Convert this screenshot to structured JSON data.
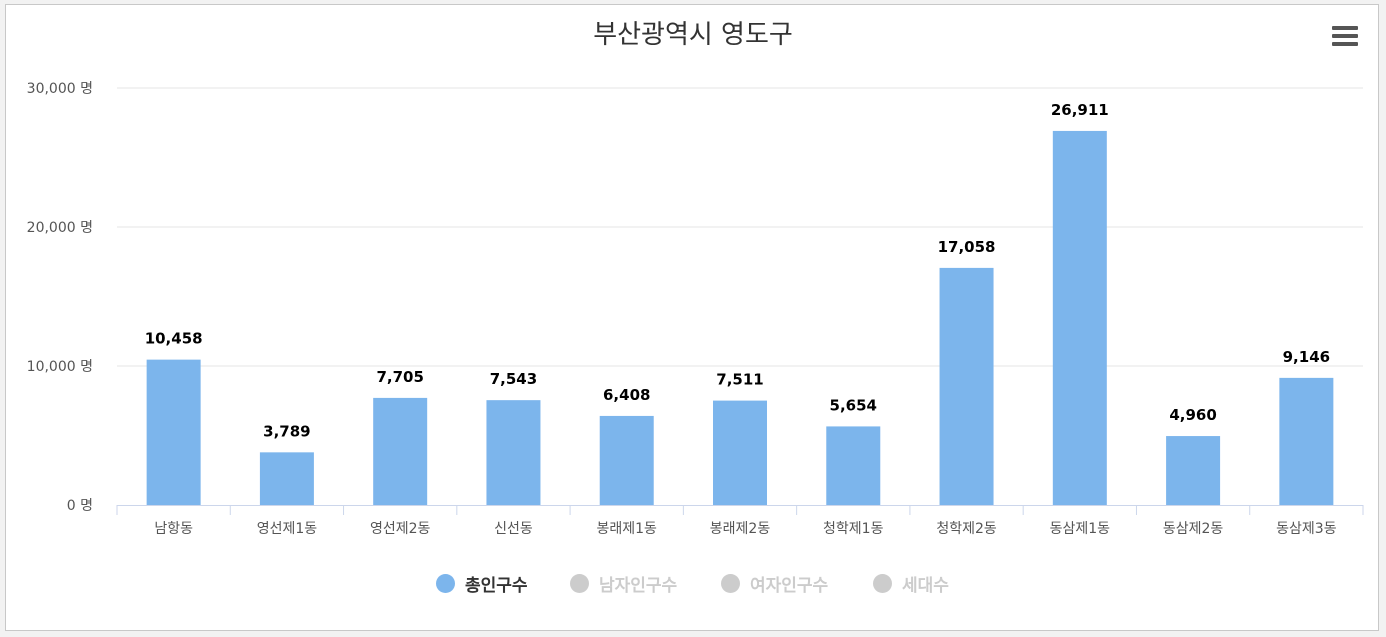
{
  "chart_data": {
    "type": "bar",
    "title": "부산광역시 영도구",
    "categories": [
      "남항동",
      "영선제1동",
      "영선제2동",
      "신선동",
      "봉래제1동",
      "봉래제2동",
      "청학제1동",
      "청학제2동",
      "동삼제1동",
      "동삼제2동",
      "동삼제3동"
    ],
    "series": [
      {
        "name": "총인구수",
        "values": [
          10458,
          3789,
          7705,
          7543,
          6408,
          7511,
          5654,
          17058,
          26911,
          4960,
          9146
        ],
        "color": "#7cb5ec"
      }
    ],
    "data_labels": [
      "10,458",
      "3,789",
      "7,705",
      "7,543",
      "6,408",
      "7,511",
      "5,654",
      "17,058",
      "26,911",
      "4,960",
      "9,146"
    ],
    "ylim": [
      0,
      30000
    ],
    "yticks": [
      0,
      10000,
      20000,
      30000
    ],
    "ytick_labels": [
      "0 명",
      "10,000 명",
      "20,000 명",
      "30,000 명"
    ],
    "xlabel": "",
    "ylabel": "",
    "grid": true,
    "legend_position": "bottom"
  },
  "legend": [
    {
      "label": "총인구수",
      "active": true,
      "color": "#7cb5ec"
    },
    {
      "label": "남자인구수",
      "active": false,
      "color": "#cccccc"
    },
    {
      "label": "여자인구수",
      "active": false,
      "color": "#cccccc"
    },
    {
      "label": "세대수",
      "active": false,
      "color": "#cccccc"
    }
  ],
  "menu": {
    "icon": "hamburger-menu-icon"
  }
}
